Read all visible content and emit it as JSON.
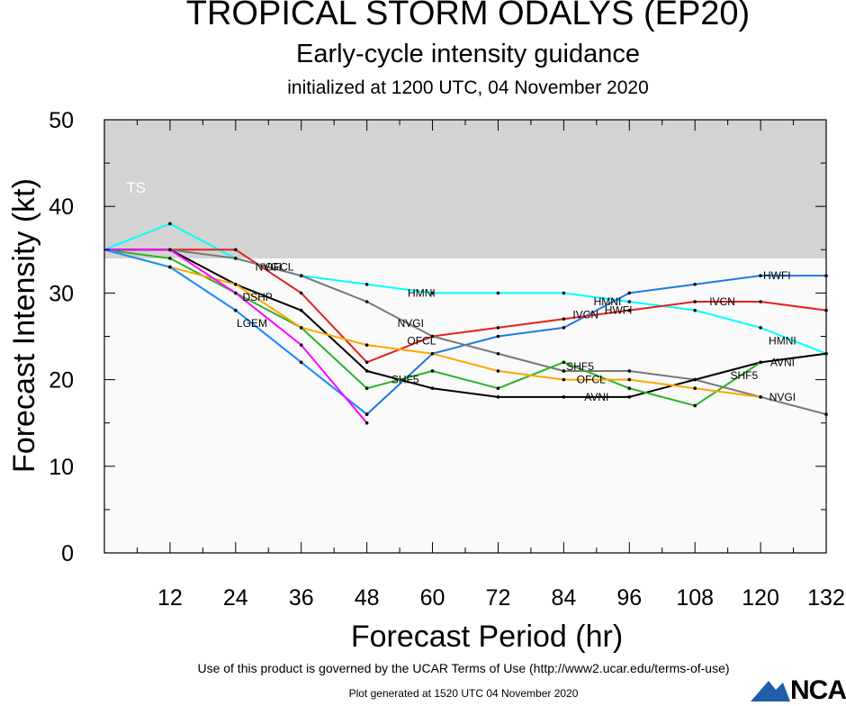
{
  "header": {
    "title": "TROPICAL STORM ODALYS (EP20)",
    "subtitle": "Early-cycle intensity guidance",
    "init": "initialized at 1200 UTC, 04 November 2020"
  },
  "footer": {
    "terms": "Use of this product is governed by the UCAR Terms of Use (http://www2.ucar.edu/terms-of-use)",
    "generated": "Plot generated at 1520 UTC   04 November 2020",
    "logo": "NCAR"
  },
  "chart_data": {
    "type": "line",
    "title": "TROPICAL STORM ODALYS (EP20)",
    "subtitle": "Early-cycle intensity guidance",
    "xlabel": "Forecast Period (hr)",
    "ylabel": "Forecast Intensity (kt)",
    "xlim": [
      0,
      132
    ],
    "ylim": [
      0,
      50
    ],
    "xticks": [
      12,
      24,
      36,
      48,
      60,
      72,
      84,
      96,
      108,
      120,
      132
    ],
    "yticks": [
      0,
      10,
      20,
      30,
      40,
      50
    ],
    "band": {
      "label": "TS",
      "from": 34,
      "to": 50,
      "color": "#d3d3d3"
    },
    "plot_background": "#fafafa",
    "grid": false,
    "series": [
      {
        "name": "HMNI",
        "color": "#00ffff",
        "x": [
          0,
          12,
          24,
          36,
          48,
          60,
          72,
          84,
          96,
          108,
          120,
          132
        ],
        "y": [
          35,
          38,
          34,
          32,
          31,
          30,
          30,
          30,
          29,
          28,
          26,
          23
        ],
        "labels": [
          {
            "x": 58,
            "y": 30
          },
          {
            "x": 92,
            "y": 29
          },
          {
            "x": 124,
            "y": 24.5
          }
        ]
      },
      {
        "name": "HWFI",
        "color": "#1e78e6",
        "x": [
          0,
          12,
          24,
          36,
          48,
          60,
          72,
          84,
          96,
          108,
          120,
          132
        ],
        "y": [
          35,
          33,
          28,
          22,
          16,
          23,
          25,
          26,
          30,
          31,
          32,
          32
        ],
        "labels": [
          {
            "x": 94,
            "y": 28
          },
          {
            "x": 123,
            "y": 32
          }
        ]
      },
      {
        "name": "IVCN",
        "color": "#e61e1e",
        "x": [
          0,
          12,
          24,
          36,
          48,
          60,
          72,
          84,
          96,
          108,
          120,
          132
        ],
        "y": [
          35,
          35,
          35,
          30,
          22,
          25,
          26,
          27,
          28,
          29,
          29,
          28
        ],
        "labels": [
          {
            "x": 88,
            "y": 27.5
          },
          {
            "x": 113,
            "y": 29
          }
        ]
      },
      {
        "name": "NVGI",
        "color": "#787878",
        "x": [
          0,
          12,
          24,
          36,
          48,
          60,
          72,
          84,
          96,
          108,
          120,
          132
        ],
        "y": [
          35,
          35,
          34,
          32,
          29,
          25,
          23,
          21,
          21,
          20,
          18,
          16
        ],
        "labels": [
          {
            "x": 30,
            "y": 33
          },
          {
            "x": 56,
            "y": 26.5
          },
          {
            "x": 124,
            "y": 18
          }
        ]
      },
      {
        "name": "AVNI",
        "color": "#000000",
        "x": [
          0,
          12,
          24,
          36,
          48,
          60,
          72,
          84,
          96,
          108,
          120,
          132
        ],
        "y": [
          35,
          35,
          31,
          28,
          21,
          19,
          18,
          18,
          18,
          20,
          22,
          23
        ],
        "labels": [
          {
            "x": 90,
            "y": 18
          },
          {
            "x": 124,
            "y": 22
          }
        ]
      },
      {
        "name": "SHF5",
        "color": "#28b428",
        "x": [
          0,
          12,
          24,
          36,
          48,
          60,
          72,
          84,
          96,
          108,
          120
        ],
        "y": [
          35,
          34,
          30,
          26,
          19,
          21,
          19,
          22,
          19,
          17,
          22
        ],
        "labels": [
          {
            "x": 55,
            "y": 20
          },
          {
            "x": 87,
            "y": 21.5
          },
          {
            "x": 117,
            "y": 20.5
          }
        ]
      },
      {
        "name": "OFCL",
        "color": "#ffa500",
        "x": [
          0,
          12,
          24,
          36,
          48,
          60,
          72,
          84,
          96,
          108,
          120
        ],
        "y": [
          35,
          33,
          31,
          26,
          24,
          23,
          21,
          20,
          20,
          19,
          18
        ],
        "labels": [
          {
            "x": 32,
            "y": 33
          },
          {
            "x": 58,
            "y": 24.5
          },
          {
            "x": 89,
            "y": 20
          }
        ]
      },
      {
        "name": "LGEM",
        "color": "#1e90ff",
        "x": [
          0,
          12,
          24,
          36,
          48
        ],
        "y": [
          35,
          33,
          28,
          22,
          16
        ],
        "labels": [
          {
            "x": 27,
            "y": 26.5
          }
        ]
      },
      {
        "name": "DSHP",
        "color": "#ff00ff",
        "x": [
          0,
          12,
          24,
          36,
          48
        ],
        "y": [
          35,
          35,
          30,
          24,
          15
        ],
        "labels": [
          {
            "x": 28,
            "y": 29.5
          }
        ]
      }
    ]
  }
}
